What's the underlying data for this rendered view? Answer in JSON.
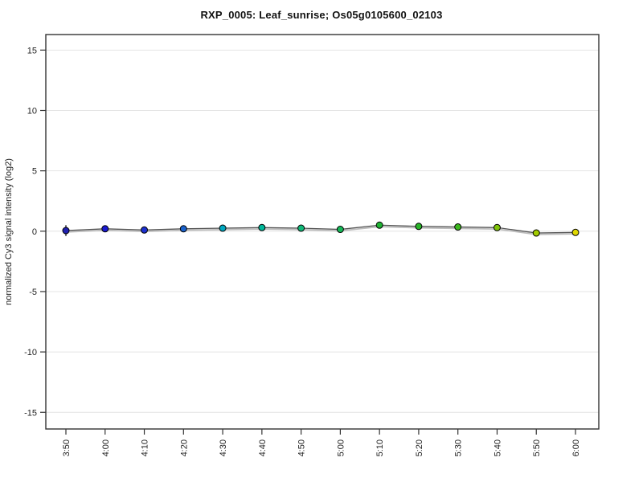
{
  "title": "RXP_0005: Leaf_sunrise; Os05g0105600_02103",
  "chart_data": {
    "type": "line",
    "title": "RXP_0005: Leaf_sunrise; Os05g0105600_02103",
    "xlabel": "",
    "ylabel": "normalized Cy3 signal intensity (log2)",
    "categories": [
      "3:50",
      "4:00",
      "4:10",
      "4:20",
      "4:30",
      "4:40",
      "4:50",
      "5:00",
      "5:10",
      "5:20",
      "5:30",
      "5:40",
      "5:50",
      "6:00"
    ],
    "values": [
      0.05,
      0.2,
      0.1,
      0.2,
      0.25,
      0.3,
      0.25,
      0.15,
      0.5,
      0.4,
      0.35,
      0.3,
      -0.15,
      -0.1
    ],
    "error_bars": [
      0.45,
      0,
      0,
      0,
      0,
      0,
      0,
      0,
      0,
      0,
      0,
      0,
      0,
      0
    ],
    "point_colors": [
      "#2020b0",
      "#1a1ad0",
      "#1c30d0",
      "#1a62cc",
      "#00a8c0",
      "#00b89a",
      "#10b878",
      "#16b858",
      "#20b434",
      "#28b428",
      "#3cb81e",
      "#80c40a",
      "#a2cc00",
      "#e0d800"
    ],
    "point_outline_color": "#000000",
    "line_color": "#555555",
    "shadow_line_color": "#bcbcbc",
    "axis_color": "#333333",
    "tick_label_color": "#222222",
    "grid": true,
    "grid_color": "#e4e4e4",
    "yticks": [
      -15,
      -10,
      -5,
      0,
      5,
      10,
      15
    ],
    "ylim": [
      -16.3,
      16.3
    ],
    "legend": "none"
  }
}
